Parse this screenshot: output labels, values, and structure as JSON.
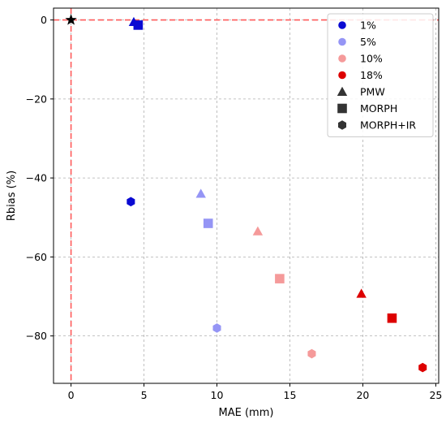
{
  "chart_data": {
    "type": "scatter",
    "title": "",
    "xlabel": "MAE (mm)",
    "ylabel": "Rbias (%)",
    "xlim": [
      -1.2,
      25.2
    ],
    "ylim": [
      -92,
      3
    ],
    "xticks": [
      0,
      5,
      10,
      15,
      20,
      25
    ],
    "yticks": [
      0,
      -20,
      -40,
      -60,
      -80
    ],
    "grid": true,
    "legend_position": "top-right",
    "reference_lines": {
      "x": 0,
      "y": 0,
      "color": "#ff5a5a",
      "style": "dashed"
    },
    "reference_point": {
      "x": 0,
      "y": 0,
      "marker": "star",
      "color": "#000000"
    },
    "color_legend": [
      {
        "label": "1%",
        "color": "#0a0ad2"
      },
      {
        "label": "5%",
        "color": "#9595f5"
      },
      {
        "label": "10%",
        "color": "#f59a9a"
      },
      {
        "label": "18%",
        "color": "#dd0000"
      }
    ],
    "marker_legend": [
      {
        "label": "PMW",
        "marker": "triangle"
      },
      {
        "label": "MORPH",
        "marker": "square"
      },
      {
        "label": "MORPH+IR",
        "marker": "hexagon"
      }
    ],
    "points": [
      {
        "threshold": "1%",
        "product": "PMW",
        "x": 4.3,
        "y": -0.5
      },
      {
        "threshold": "1%",
        "product": "MORPH",
        "x": 4.6,
        "y": -1.3
      },
      {
        "threshold": "1%",
        "product": "MORPH+IR",
        "x": 4.1,
        "y": -46
      },
      {
        "threshold": "5%",
        "product": "PMW",
        "x": 8.9,
        "y": -44
      },
      {
        "threshold": "5%",
        "product": "MORPH",
        "x": 9.4,
        "y": -51.5
      },
      {
        "threshold": "5%",
        "product": "MORPH+IR",
        "x": 10.0,
        "y": -78
      },
      {
        "threshold": "10%",
        "product": "PMW",
        "x": 12.8,
        "y": -53.5
      },
      {
        "threshold": "10%",
        "product": "MORPH",
        "x": 14.3,
        "y": -65.5
      },
      {
        "threshold": "10%",
        "product": "MORPH+IR",
        "x": 16.5,
        "y": -84.5
      },
      {
        "threshold": "18%",
        "product": "PMW",
        "x": 19.9,
        "y": -69.3
      },
      {
        "threshold": "18%",
        "product": "MORPH",
        "x": 22.0,
        "y": -75.5
      },
      {
        "threshold": "18%",
        "product": "MORPH+IR",
        "x": 24.1,
        "y": -88
      }
    ]
  }
}
